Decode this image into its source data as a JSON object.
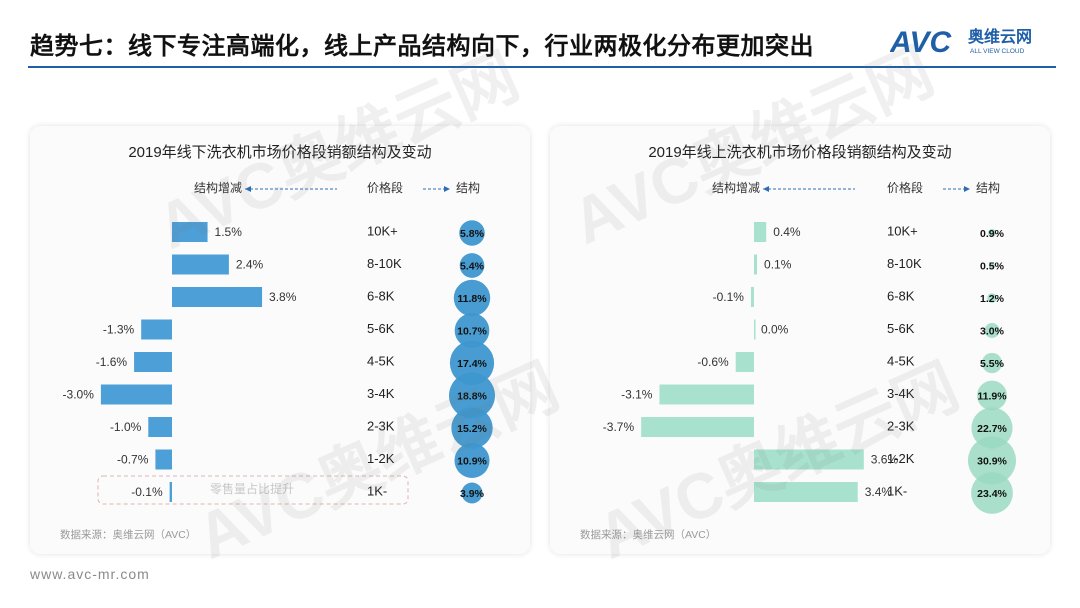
{
  "header": {
    "title": "趋势七：线下专注高端化，线上产品结构向下，行业两极化分布更加突出",
    "logo_letters": "AVC",
    "logo_cn": "奥维云网",
    "logo_en": "ALL VIEW CLOUD"
  },
  "footer": {
    "website": "www.avc-mr.com"
  },
  "watermark": {
    "text": "AVC奥维云网",
    "sub": "ALL VIEW CLOUD"
  },
  "colors": {
    "accent": "#1f5fa8",
    "offline_bar": "#4d9fd8",
    "offline_bubble": "#3e97cf",
    "online_bar": "#a8e2cf",
    "online_bubble": "#9ad9c2"
  },
  "chart_data": [
    {
      "type": "bar",
      "title": "2019年线下洗衣机市场价格段销额结构及变动",
      "header_change": "结构增减",
      "header_segment": "价格段",
      "header_share": "结构",
      "categories": [
        "10K+",
        "8-10K",
        "6-8K",
        "5-6K",
        "4-5K",
        "3-4K",
        "2-3K",
        "1-2K",
        "1K-"
      ],
      "change_labels": [
        "1.5%",
        "2.4%",
        "3.8%",
        "-1.3%",
        "-1.6%",
        "-3.0%",
        "-1.0%",
        "-0.7%",
        "-0.1%"
      ],
      "change_values": [
        1.5,
        2.4,
        3.8,
        -1.3,
        -1.6,
        -3.0,
        -1.0,
        -0.7,
        -0.1
      ],
      "share_labels": [
        "5.8%",
        "5.4%",
        "11.8%",
        "10.7%",
        "17.4%",
        "18.8%",
        "15.2%",
        "10.9%",
        "3.9%"
      ],
      "share_values": [
        5.8,
        5.4,
        11.8,
        10.7,
        17.4,
        18.8,
        15.2,
        10.9,
        3.9
      ],
      "annotation": "零售量占比提升",
      "source": "数据来源：奥维云网（AVC）"
    },
    {
      "type": "bar",
      "title": "2019年线上洗衣机市场价格段销额结构及变动",
      "header_change": "结构增减",
      "header_segment": "价格段",
      "header_share": "结构",
      "categories": [
        "10K+",
        "8-10K",
        "6-8K",
        "5-6K",
        "4-5K",
        "3-4K",
        "2-3K",
        "1-2K",
        "1K-"
      ],
      "change_labels": [
        "0.4%",
        "0.1%",
        "-0.1%",
        "0.0%",
        "-0.6%",
        "-3.1%",
        "-3.7%",
        "3.6%",
        "3.4%"
      ],
      "change_values": [
        0.4,
        0.1,
        -0.1,
        0.0,
        -0.6,
        -3.1,
        -3.7,
        3.6,
        3.4
      ],
      "share_labels": [
        "0.9%",
        "0.5%",
        "1.2%",
        "3.0%",
        "5.5%",
        "11.9%",
        "22.7%",
        "30.9%",
        "23.4%"
      ],
      "share_values": [
        0.9,
        0.5,
        1.2,
        3.0,
        5.5,
        11.9,
        22.7,
        30.9,
        23.4
      ],
      "source": "数据来源：奥维云网（AVC）"
    }
  ]
}
